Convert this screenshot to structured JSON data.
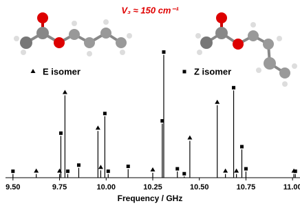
{
  "chart_data": {
    "type": "stick",
    "annotation": "V₃ ≈ 150 cm⁻¹",
    "xlabel": "Frequency / GHz",
    "xlim": [
      9.46,
      11.04
    ],
    "xticks": [
      {
        "value": 9.5,
        "label": "9.50"
      },
      9.75,
      {
        "value": 10.0,
        "label": "10.00"
      },
      10.25,
      {
        "value": 10.5,
        "label": "10.50"
      },
      10.75,
      {
        "value": 11.0,
        "label": "11.00"
      }
    ],
    "ylim": [
      0,
      1.02
    ],
    "series": [
      {
        "name": "E isomer",
        "color": "#000000",
        "marker": "triangle",
        "x": [
          9.625,
          9.75,
          9.779,
          9.956,
          9.971,
          10.25,
          10.449,
          10.596,
          10.64,
          10.699,
          11.007
        ],
        "values": [
          0.03,
          0.03,
          0.67,
          0.38,
          0.06,
          0.04,
          0.3,
          0.59,
          0.03,
          0.03,
          0.03
        ]
      },
      {
        "name": "Z isomer",
        "color": "#000000",
        "marker": "square",
        "x": [
          9.5,
          9.757,
          9.794,
          9.853,
          9.993,
          10.011,
          10.118,
          10.301,
          10.309,
          10.382,
          10.419,
          10.684,
          10.728,
          10.75,
          11.015
        ],
        "values": [
          0.03,
          0.34,
          0.03,
          0.08,
          0.5,
          0.03,
          0.07,
          0.44,
          1.0,
          0.05,
          0.01,
          0.71,
          0.23,
          0.05,
          0.03
        ]
      }
    ]
  }
}
